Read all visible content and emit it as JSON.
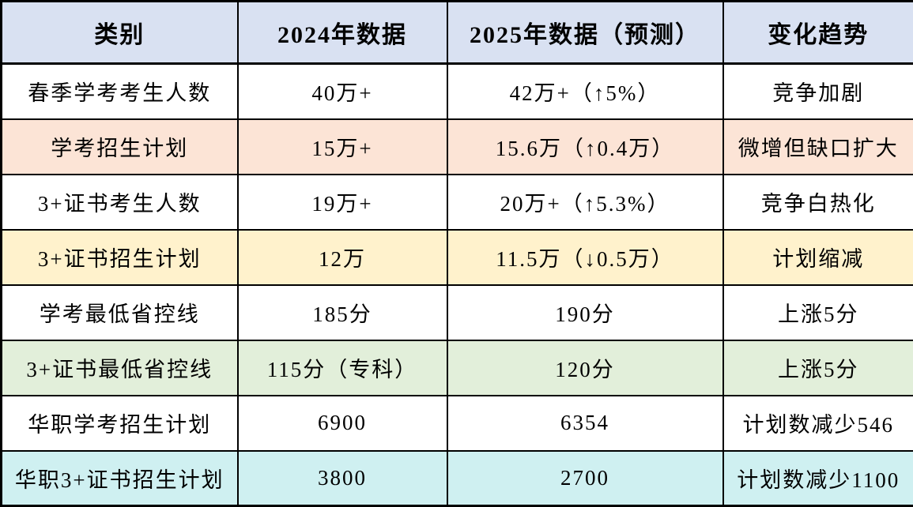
{
  "table": {
    "colors": {
      "header_bg": "#D9E1F2",
      "border": "#000000",
      "row_white": "#FFFFFF",
      "row_peach": "#FCE4D6",
      "row_yellow": "#FFF2CC",
      "row_green": "#E2EFDA",
      "row_cyan": "#CFF0F1"
    },
    "columns": [
      {
        "label": "类别"
      },
      {
        "label": "2024年数据"
      },
      {
        "label": "2025年数据（预测）"
      },
      {
        "label": "变化趋势"
      }
    ],
    "rows": [
      {
        "category": "春季学考考生人数",
        "y2024": "40万+",
        "y2025": "42万+（↑5%）",
        "trend": "竞争加剧",
        "bg": "#FFFFFF"
      },
      {
        "category": "学考招生计划",
        "y2024": "15万+",
        "y2025": "15.6万（↑0.4万）",
        "trend": "微增但缺口扩大",
        "bg": "#FCE4D6"
      },
      {
        "category": "3+证书考生人数",
        "y2024": "19万+",
        "y2025": "20万+（↑5.3%）",
        "trend": "竞争白热化",
        "bg": "#FFFFFF"
      },
      {
        "category": "3+证书招生计划",
        "y2024": "12万",
        "y2025": "11.5万（↓0.5万）",
        "trend": "计划缩减",
        "bg": "#FFF2CC"
      },
      {
        "category": "学考最低省控线",
        "y2024": "185分",
        "y2025": "190分",
        "trend": "上涨5分",
        "bg": "#FFFFFF"
      },
      {
        "category": "3+证书最低省控线",
        "y2024": "115分（专科）",
        "y2025": "120分",
        "trend": "上涨5分",
        "bg": "#E2EFDA"
      },
      {
        "category": "华职学考招生计划",
        "y2024": "6900",
        "y2025": "6354",
        "trend": "计划数减少546",
        "bg": "#FFFFFF"
      },
      {
        "category": "华职3+证书招生计划",
        "y2024": "3800",
        "y2025": "2700",
        "trend": "计划数减少1100",
        "bg": "#CFF0F1"
      }
    ]
  }
}
